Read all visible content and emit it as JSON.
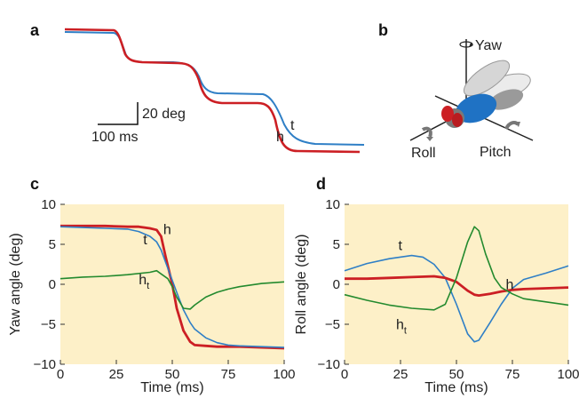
{
  "colors": {
    "head": "#cc1f24",
    "thorax": "#2f7fc6",
    "head_thorax": "#238a2e",
    "panel_bg": "#fdf0c8",
    "fly_body": "#1f72c4"
  },
  "panel_a": {
    "label": "a",
    "scale_x": "100 ms",
    "scale_y": "20 deg",
    "label_h": "h",
    "label_t": "t"
  },
  "panel_b": {
    "label": "b",
    "yaw": "Yaw",
    "roll": "Roll",
    "pitch": "Pitch"
  },
  "chart_data": [
    {
      "panel": "c",
      "type": "line",
      "xlabel": "Time (ms)",
      "ylabel": "Yaw angle (deg)",
      "xlim": [
        0,
        100
      ],
      "ylim": [
        -10,
        10
      ],
      "xticks": [
        "0",
        "25",
        "50",
        "75",
        "100"
      ],
      "yticks": [
        "10",
        "5",
        "0",
        "−5",
        "−10"
      ],
      "grid": false,
      "series": [
        {
          "name": "h",
          "color": "#cc1f24",
          "x": [
            0,
            10,
            20,
            30,
            35,
            40,
            43,
            45,
            47,
            50,
            52,
            55,
            58,
            60,
            65,
            70,
            80,
            90,
            100
          ],
          "y": [
            7.3,
            7.3,
            7.3,
            7.2,
            7.2,
            7.0,
            6.8,
            6.0,
            3.5,
            0.0,
            -3.0,
            -5.8,
            -7.2,
            -7.6,
            -7.7,
            -7.8,
            -7.8,
            -7.9,
            -8.0
          ]
        },
        {
          "name": "t",
          "color": "#2f7fc6",
          "x": [
            0,
            10,
            20,
            30,
            35,
            40,
            43,
            45,
            48,
            50,
            52,
            55,
            58,
            60,
            65,
            70,
            75,
            80,
            90,
            100
          ],
          "y": [
            7.2,
            7.1,
            7.0,
            6.9,
            6.6,
            6.0,
            5.3,
            4.3,
            2.0,
            0.5,
            -1.0,
            -3.2,
            -4.8,
            -5.6,
            -6.7,
            -7.3,
            -7.6,
            -7.7,
            -7.8,
            -7.9
          ]
        },
        {
          "name": "h_t",
          "color": "#238a2e",
          "x": [
            0,
            10,
            20,
            30,
            40,
            43,
            45,
            48,
            50,
            52,
            55,
            58,
            60,
            65,
            70,
            75,
            80,
            90,
            100
          ],
          "y": [
            0.7,
            0.9,
            1.0,
            1.2,
            1.5,
            1.7,
            1.3,
            0.7,
            -0.3,
            -1.6,
            -3.0,
            -3.1,
            -2.6,
            -1.6,
            -1.0,
            -0.6,
            -0.3,
            0.1,
            0.3
          ]
        }
      ],
      "annotations": [
        {
          "text": "h",
          "x": 46,
          "y": 6.3
        },
        {
          "text": "t",
          "x": 37,
          "y": 5.0
        },
        {
          "text": "h",
          "sub": "t",
          "x": 35,
          "y": 0.0
        }
      ]
    },
    {
      "panel": "d",
      "type": "line",
      "xlabel": "Time (ms)",
      "ylabel": "Roll angle (deg)",
      "xlim": [
        0,
        100
      ],
      "ylim": [
        -10,
        10
      ],
      "xticks": [
        "0",
        "25",
        "50",
        "75",
        "100"
      ],
      "yticks": [
        "10",
        "5",
        "0",
        "−5",
        "−10"
      ],
      "grid": false,
      "series": [
        {
          "name": "t",
          "color": "#2f7fc6",
          "x": [
            0,
            10,
            20,
            30,
            35,
            40,
            45,
            50,
            55,
            58,
            60,
            65,
            70,
            75,
            80,
            90,
            100
          ],
          "y": [
            1.7,
            2.6,
            3.2,
            3.6,
            3.4,
            2.5,
            0.8,
            -2.5,
            -6.2,
            -7.2,
            -7.0,
            -4.8,
            -2.5,
            -0.5,
            0.6,
            1.4,
            2.3
          ]
        },
        {
          "name": "h",
          "color": "#cc1f24",
          "x": [
            0,
            10,
            20,
            30,
            40,
            45,
            50,
            55,
            58,
            60,
            65,
            70,
            75,
            80,
            90,
            100
          ],
          "y": [
            0.7,
            0.7,
            0.8,
            0.9,
            1.0,
            0.8,
            0.3,
            -0.8,
            -1.3,
            -1.4,
            -1.2,
            -0.9,
            -0.7,
            -0.6,
            -0.5,
            -0.4
          ]
        },
        {
          "name": "h_t",
          "color": "#238a2e",
          "x": [
            0,
            10,
            20,
            30,
            40,
            45,
            50,
            55,
            58,
            60,
            63,
            67,
            70,
            75,
            80,
            90,
            100
          ],
          "y": [
            -1.3,
            -2.0,
            -2.6,
            -3.0,
            -3.2,
            -2.5,
            0.8,
            5.3,
            7.2,
            6.7,
            3.8,
            0.8,
            -0.4,
            -1.2,
            -1.8,
            -2.2,
            -2.6
          ]
        }
      ],
      "annotations": [
        {
          "text": "t",
          "x": 24,
          "y": 4.3
        },
        {
          "text": "h",
          "x": 72,
          "y": -0.6
        },
        {
          "text": "h",
          "sub": "t",
          "x": 23,
          "y": -5.6
        }
      ]
    }
  ]
}
